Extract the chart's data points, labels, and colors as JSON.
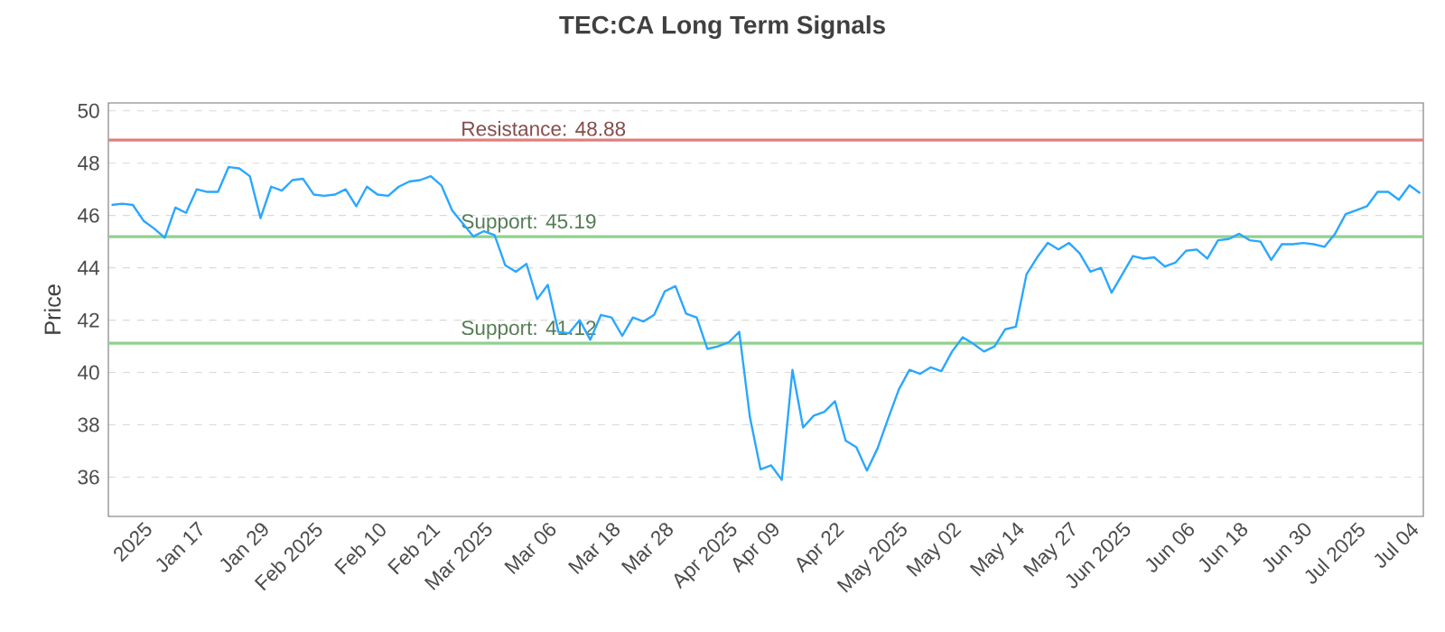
{
  "chart_data": {
    "type": "line",
    "title": "TEC:CA Long Term Signals",
    "ylabel": "Price",
    "categories": [
      null,
      null,
      null,
      "2025",
      null,
      null,
      null,
      null,
      "Jan 17",
      null,
      null,
      null,
      null,
      null,
      "Jan 29",
      null,
      null,
      null,
      null,
      "Feb 2025",
      null,
      null,
      null,
      null,
      null,
      "Feb 10",
      null,
      null,
      null,
      null,
      "Feb 21",
      null,
      null,
      null,
      null,
      "Mar 2025",
      null,
      null,
      null,
      null,
      null,
      "Mar 06",
      null,
      null,
      null,
      null,
      null,
      "Mar 18",
      null,
      null,
      null,
      null,
      "Mar 28",
      null,
      null,
      null,
      null,
      null,
      "Apr 2025",
      null,
      null,
      null,
      "Apr 09",
      null,
      null,
      null,
      null,
      null,
      "Apr 22",
      null,
      null,
      null,
      null,
      null,
      "May 2025",
      null,
      null,
      null,
      null,
      "May 02",
      null,
      null,
      null,
      null,
      null,
      "May 14",
      null,
      null,
      null,
      null,
      "May 27",
      null,
      null,
      null,
      null,
      "Jun 2025",
      null,
      null,
      null,
      null,
      null,
      "Jun 06",
      null,
      null,
      null,
      null,
      "Jun 18",
      null,
      null,
      null,
      null,
      null,
      "Jun 30",
      null,
      null,
      null,
      null,
      "Jul 2025",
      null,
      null,
      null,
      null,
      "Jul 04",
      null
    ],
    "series": [
      {
        "color": "#2aa7ff",
        "values": [
          46.4,
          46.45,
          46.4,
          45.8,
          45.5,
          45.15,
          46.3,
          46.1,
          47.0,
          46.9,
          46.9,
          47.85,
          47.8,
          47.5,
          45.9,
          47.1,
          46.95,
          47.35,
          47.4,
          46.8,
          46.75,
          46.8,
          47.0,
          46.35,
          47.1,
          46.8,
          46.75,
          47.1,
          47.3,
          47.35,
          47.5,
          47.15,
          46.2,
          45.7,
          45.2,
          45.4,
          45.25,
          44.1,
          43.85,
          44.15,
          42.8,
          43.35,
          41.55,
          41.5,
          42.0,
          41.25,
          42.2,
          42.1,
          41.4,
          42.1,
          41.95,
          42.2,
          43.1,
          43.3,
          42.25,
          42.1,
          40.9,
          41.0,
          41.15,
          41.55,
          38.3,
          36.3,
          36.45,
          35.9,
          40.1,
          37.9,
          38.35,
          38.5,
          38.9,
          37.4,
          37.15,
          36.25,
          37.1,
          38.25,
          39.35,
          40.1,
          39.95,
          40.2,
          40.05,
          40.8,
          41.35,
          41.1,
          40.8,
          41.0,
          41.65,
          41.75,
          43.75,
          44.4,
          44.95,
          44.7,
          44.95,
          44.55,
          43.85,
          44.0,
          43.05,
          43.75,
          44.45,
          44.35,
          44.4,
          44.05,
          44.2,
          44.65,
          44.7,
          44.35,
          45.05,
          45.1,
          45.3,
          45.05,
          45.0,
          44.3,
          44.9,
          44.9,
          44.95,
          44.9,
          44.8,
          45.3,
          46.05,
          46.2,
          46.35,
          46.9,
          46.9,
          46.6,
          47.15,
          46.85
        ]
      }
    ],
    "ylim": [
      34.5,
      50.3
    ],
    "yticks": [
      36,
      38,
      40,
      42,
      44,
      46,
      48,
      50
    ],
    "grid": "y",
    "marker": "none",
    "line_style": "solid",
    "ref_lines": [
      {
        "axis": "y",
        "value": 48.88,
        "label": "Resistance: 48.88",
        "color": "#e08080"
      },
      {
        "axis": "y",
        "value": 45.19,
        "label": "Support: 45.19",
        "color": "#8fd18f"
      },
      {
        "axis": "y",
        "value": 41.12,
        "label": "Support: 41.12",
        "color": "#8fd18f"
      }
    ]
  }
}
